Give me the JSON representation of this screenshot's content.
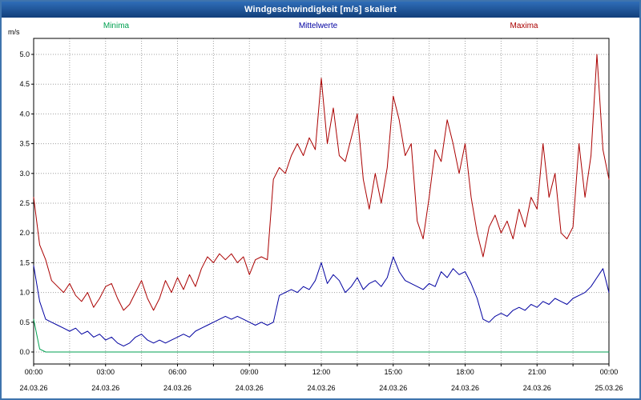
{
  "window": {
    "title": "Windgeschwindigkeit [m/s] skaliert",
    "titlebar_color": "#1b4e8e",
    "border_color": "#3f74ad"
  },
  "chart_data": {
    "type": "line",
    "title": "Windgeschwindigkeit [m/s] skaliert",
    "ylabel": "m/s",
    "xlabel": "",
    "ylim": [
      0,
      5.3
    ],
    "yticks": [
      0.0,
      0.5,
      1.0,
      1.5,
      2.0,
      2.5,
      3.0,
      3.5,
      4.0,
      4.5,
      5.0
    ],
    "xlim": [
      0,
      24
    ],
    "x_start": 0,
    "x_step_hours": 0.25,
    "grid": "dotted",
    "legend_position": "top",
    "grid_color": "#a0a0a0",
    "xticks": [
      {
        "time": "00:00",
        "date": "24.03.26"
      },
      {
        "time": "03:00",
        "date": "24.03.26"
      },
      {
        "time": "06:00",
        "date": "24.03.26"
      },
      {
        "time": "09:00",
        "date": "24.03.26"
      },
      {
        "time": "12:00",
        "date": "24.03.26"
      },
      {
        "time": "15:00",
        "date": "24.03.26"
      },
      {
        "time": "18:00",
        "date": "24.03.26"
      },
      {
        "time": "21:00",
        "date": "24.03.26"
      },
      {
        "time": "00:00",
        "date": "25.03.26"
      }
    ],
    "series": [
      {
        "name": "Minima",
        "color": "#00a050",
        "values": [
          0.55,
          0.05,
          0.0,
          0.0,
          0.0,
          0.0,
          0.0,
          0.0,
          0.0,
          0.0,
          0.0,
          0.0,
          0.0,
          0.0,
          0.0,
          0.0,
          0.0,
          0.0,
          0.0,
          0.0,
          0.0,
          0.0,
          0.0,
          0.0,
          0.0,
          0.0,
          0.0,
          0.0,
          0.0,
          0.0,
          0.0,
          0.0,
          0.0,
          0.0,
          0.0,
          0.0,
          0.0,
          0.0,
          0.0,
          0.0,
          0.0,
          0.0,
          0.0,
          0.0,
          0.0,
          0.0,
          0.0,
          0.0,
          0.0,
          0.0,
          0.0,
          0.0,
          0.0,
          0.0,
          0.0,
          0.0,
          0.0,
          0.0,
          0.0,
          0.0,
          0.0,
          0.0,
          0.0,
          0.0,
          0.0,
          0.0,
          0.0,
          0.0,
          0.0,
          0.0,
          0.0,
          0.0,
          0.0,
          0.0,
          0.0,
          0.0,
          0.0,
          0.0,
          0.0,
          0.0,
          0.0,
          0.0,
          0.0,
          0.0,
          0.0,
          0.0,
          0.0,
          0.0,
          0.0,
          0.0,
          0.0,
          0.0,
          0.0,
          0.0,
          0.0,
          0.0,
          0.0
        ]
      },
      {
        "name": "Mittelwerte",
        "color": "#0000a0",
        "values": [
          1.45,
          0.85,
          0.55,
          0.5,
          0.45,
          0.4,
          0.35,
          0.4,
          0.3,
          0.35,
          0.25,
          0.3,
          0.2,
          0.25,
          0.15,
          0.1,
          0.15,
          0.25,
          0.3,
          0.2,
          0.15,
          0.2,
          0.15,
          0.2,
          0.25,
          0.3,
          0.25,
          0.35,
          0.4,
          0.45,
          0.5,
          0.55,
          0.6,
          0.55,
          0.6,
          0.55,
          0.5,
          0.45,
          0.5,
          0.45,
          0.5,
          0.95,
          1.0,
          1.05,
          1.0,
          1.1,
          1.05,
          1.2,
          1.5,
          1.15,
          1.3,
          1.2,
          1.0,
          1.1,
          1.25,
          1.05,
          1.15,
          1.2,
          1.1,
          1.25,
          1.6,
          1.35,
          1.2,
          1.15,
          1.1,
          1.05,
          1.15,
          1.1,
          1.35,
          1.25,
          1.4,
          1.3,
          1.35,
          1.15,
          0.9,
          0.55,
          0.5,
          0.6,
          0.65,
          0.6,
          0.7,
          0.75,
          0.7,
          0.8,
          0.75,
          0.85,
          0.8,
          0.9,
          0.85,
          0.8,
          0.9,
          0.95,
          1.0,
          1.1,
          1.25,
          1.4,
          1.0
        ]
      },
      {
        "name": "Maxima",
        "color": "#aa0000",
        "values": [
          2.6,
          1.8,
          1.55,
          1.2,
          1.1,
          1.0,
          1.15,
          0.95,
          0.85,
          1.0,
          0.75,
          0.9,
          1.1,
          1.15,
          0.9,
          0.7,
          0.8,
          1.0,
          1.2,
          0.9,
          0.7,
          0.9,
          1.2,
          1.0,
          1.25,
          1.05,
          1.3,
          1.1,
          1.4,
          1.6,
          1.5,
          1.65,
          1.55,
          1.65,
          1.5,
          1.6,
          1.3,
          1.55,
          1.6,
          1.55,
          2.9,
          3.1,
          3.0,
          3.3,
          3.5,
          3.3,
          3.6,
          3.4,
          4.6,
          3.5,
          4.1,
          3.3,
          3.2,
          3.6,
          4.0,
          2.9,
          2.4,
          3.0,
          2.5,
          3.1,
          4.3,
          3.9,
          3.3,
          3.5,
          2.2,
          1.9,
          2.6,
          3.4,
          3.2,
          3.9,
          3.5,
          3.0,
          3.5,
          2.6,
          2.0,
          1.6,
          2.1,
          2.3,
          2.0,
          2.2,
          1.9,
          2.4,
          2.1,
          2.6,
          2.4,
          3.5,
          2.6,
          3.0,
          2.0,
          1.9,
          2.1,
          3.5,
          2.6,
          3.3,
          5.0,
          3.4,
          2.9
        ]
      }
    ]
  }
}
